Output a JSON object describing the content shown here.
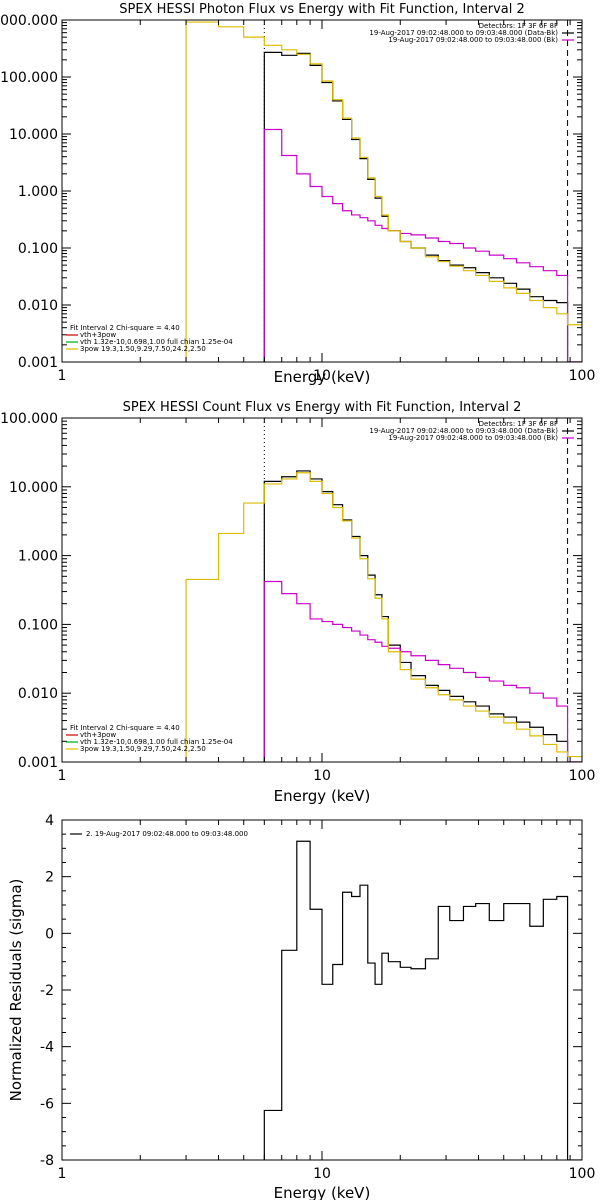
{
  "chart_data": [
    {
      "type": "line",
      "title": "SPEX HESSI Photon Flux vs Energy with Fit Function, Interval 2",
      "xlabel": "Energy (keV)",
      "ylabel": "",
      "xscale": "log",
      "yscale": "log",
      "xlim": [
        1,
        100
      ],
      "ylim": [
        0.001,
        1000
      ],
      "xticks": [
        "1",
        "10",
        "100"
      ],
      "yticks": [
        "0.001",
        "0.010",
        "0.100",
        "1.000",
        "10.000",
        "100.000",
        "1000.000"
      ],
      "detector_header": "Detectors: 1F 3F 6F 8F",
      "legend_top": [
        {
          "text": "19-Aug-2017 09:02:48.000 to 09:03:48.000 (Data-Bk)",
          "color": "#000000"
        },
        {
          "text": "19-Aug-2017 09:02:48.000 to 09:03:48.000 (Bk)",
          "color": "#cc00cc"
        }
      ],
      "legend_bottom": [
        {
          "text": "Fit Interval 2   Chi-square = 4.40",
          "color": null
        },
        {
          "text": "vth+3pow",
          "color": "#cc0000"
        },
        {
          "text": "vth 1.32e-10,0.698,1.00  full chian 1.25e-04",
          "color": "#00aa00"
        },
        {
          "text": "3pow 19.3,1.50,9.29,7.50,24.2,2.50",
          "color": "#ddbb00"
        }
      ],
      "vlines": [
        {
          "x": 6.0,
          "style": "dotted"
        },
        {
          "x": 88.0,
          "style": "dashed"
        }
      ],
      "series": [
        {
          "name": "Data-Bk",
          "color": "#000000",
          "x": [
            6.0,
            7.0,
            8.0,
            9.0,
            10.0,
            11.0,
            12.0,
            13.0,
            14.0,
            15.0,
            16.0,
            17.0,
            18.0,
            20.0,
            22.0,
            25.0,
            28.0,
            31.0,
            35.0,
            39.0,
            44.0,
            50.0,
            56.0,
            63.0,
            71.0,
            80.0,
            88.0
          ],
          "y": [
            270,
            240,
            260,
            160,
            80,
            38,
            18,
            8,
            3.7,
            1.6,
            0.75,
            0.36,
            0.2,
            0.13,
            0.1,
            0.075,
            0.06,
            0.05,
            0.045,
            0.037,
            0.03,
            0.024,
            0.019,
            0.014,
            0.012,
            0.011,
            0.001
          ]
        },
        {
          "name": "Bk",
          "color": "#cc00cc",
          "x": [
            6.0,
            7.0,
            8.0,
            9.0,
            10.0,
            11.0,
            12.0,
            13.0,
            14.0,
            15.0,
            16.0,
            17.0,
            18.0,
            20.0,
            22.0,
            25.0,
            28.0,
            31.0,
            35.0,
            39.0,
            44.0,
            50.0,
            56.0,
            63.0,
            71.0,
            80.0,
            88.0
          ],
          "y": [
            12,
            4.2,
            2.0,
            1.2,
            0.8,
            0.6,
            0.45,
            0.38,
            0.34,
            0.3,
            0.25,
            0.22,
            0.2,
            0.18,
            0.17,
            0.15,
            0.13,
            0.12,
            0.1,
            0.088,
            0.075,
            0.065,
            0.055,
            0.047,
            0.04,
            0.033,
            0.001
          ]
        },
        {
          "name": "vth+3pow",
          "color": "#ddbb00",
          "x": [
            3.0,
            4.0,
            5.0,
            6.0,
            7.0,
            8.0,
            9.0,
            10.0,
            11.0,
            12.0,
            13.0,
            14.0,
            15.0,
            16.0,
            17.0,
            18.0,
            20.0,
            22.0,
            25.0,
            28.0,
            31.0,
            35.0,
            39.0,
            44.0,
            50.0,
            56.0,
            63.0,
            71.0,
            80.0,
            88.0,
            100.0
          ],
          "y": [
            920,
            760,
            500,
            360,
            300,
            250,
            170,
            85,
            40,
            19,
            8.5,
            3.9,
            1.7,
            0.8,
            0.38,
            0.2,
            0.13,
            0.1,
            0.07,
            0.058,
            0.048,
            0.04,
            0.033,
            0.026,
            0.02,
            0.016,
            0.012,
            0.009,
            0.007,
            0.0045,
            0.0045
          ]
        }
      ]
    },
    {
      "type": "line",
      "title": "SPEX HESSI Count Flux vs Energy with Fit Function, Interval 2",
      "xlabel": "Energy (keV)",
      "ylabel": "",
      "xscale": "log",
      "yscale": "log",
      "xlim": [
        1,
        100
      ],
      "ylim": [
        0.001,
        100
      ],
      "xticks": [
        "1",
        "10",
        "100"
      ],
      "yticks": [
        "0.001",
        "0.010",
        "0.100",
        "1.000",
        "10.000",
        "100.000"
      ],
      "detector_header": "Detectors: 1F 3F 6F 8F",
      "legend_top": [
        {
          "text": "19-Aug-2017 09:02:48.000 to 09:03:48.000 (Data-Bk)",
          "color": "#000000"
        },
        {
          "text": "19-Aug-2017 09:02:48.000 to 09:03:48.000 (Bk)",
          "color": "#cc00cc"
        }
      ],
      "legend_bottom": [
        {
          "text": "Fit Interval 2   Chi-square = 4.40",
          "color": null
        },
        {
          "text": "vth+3pow",
          "color": "#cc0000"
        },
        {
          "text": "vth 1.32e-10,0.698,1.00  full chian 1.25e-04",
          "color": "#00aa00"
        },
        {
          "text": "3pow 19.3,1.50,9.29,7.50,24.2,2.50",
          "color": "#ddbb00"
        }
      ],
      "vlines": [
        {
          "x": 6.0,
          "style": "dotted"
        },
        {
          "x": 88.0,
          "style": "dashed"
        }
      ],
      "series": [
        {
          "name": "Data-Bk",
          "color": "#000000",
          "x": [
            6.0,
            7.0,
            8.0,
            9.0,
            10.0,
            11.0,
            12.0,
            13.0,
            14.0,
            15.0,
            16.0,
            17.0,
            18.0,
            20.0,
            22.0,
            25.0,
            28.0,
            31.0,
            35.0,
            39.0,
            44.0,
            50.0,
            56.0,
            63.0,
            71.0,
            80.0,
            88.0
          ],
          "y": [
            12,
            14,
            17,
            13,
            8.5,
            5.5,
            3.3,
            1.9,
            1.0,
            0.52,
            0.27,
            0.13,
            0.05,
            0.028,
            0.018,
            0.013,
            0.011,
            0.009,
            0.0075,
            0.0065,
            0.005,
            0.0045,
            0.0038,
            0.0032,
            0.0025,
            0.002,
            0.001
          ]
        },
        {
          "name": "Bk",
          "color": "#cc00cc",
          "x": [
            6.0,
            7.0,
            8.0,
            9.0,
            10.0,
            11.0,
            12.0,
            13.0,
            14.0,
            15.0,
            16.0,
            17.0,
            18.0,
            20.0,
            22.0,
            25.0,
            28.0,
            31.0,
            35.0,
            39.0,
            44.0,
            50.0,
            56.0,
            63.0,
            71.0,
            80.0,
            88.0
          ],
          "y": [
            0.42,
            0.28,
            0.2,
            0.12,
            0.11,
            0.1,
            0.09,
            0.08,
            0.07,
            0.06,
            0.055,
            0.048,
            0.045,
            0.04,
            0.035,
            0.03,
            0.026,
            0.023,
            0.02,
            0.017,
            0.015,
            0.013,
            0.012,
            0.01,
            0.0085,
            0.0065,
            0.001
          ]
        },
        {
          "name": "vth+3pow",
          "color": "#ddbb00",
          "x": [
            3.0,
            4.0,
            5.0,
            6.0,
            7.0,
            8.0,
            9.0,
            10.0,
            11.0,
            12.0,
            13.0,
            14.0,
            15.0,
            16.0,
            17.0,
            18.0,
            20.0,
            22.0,
            25.0,
            28.0,
            31.0,
            35.0,
            39.0,
            44.0,
            50.0,
            56.0,
            63.0,
            71.0,
            80.0,
            88.0,
            100.0
          ],
          "y": [
            0.45,
            2.1,
            5.8,
            11,
            13,
            16,
            12,
            8,
            5,
            3.2,
            1.8,
            0.9,
            0.46,
            0.24,
            0.12,
            0.04,
            0.022,
            0.016,
            0.012,
            0.0095,
            0.008,
            0.0065,
            0.0055,
            0.0045,
            0.0037,
            0.003,
            0.0024,
            0.0018,
            0.0014,
            0.0012,
            0.001
          ]
        }
      ]
    },
    {
      "type": "line",
      "title": "",
      "xlabel": "Energy (keV)",
      "ylabel": "Normalized Residuals (sigma)",
      "xscale": "log",
      "yscale": "linear",
      "xlim": [
        1,
        100
      ],
      "ylim": [
        -8,
        4
      ],
      "xticks": [
        "1",
        "10",
        "100"
      ],
      "yticks": [
        "-8",
        "-6",
        "-4",
        "-2",
        "0",
        "2",
        "4"
      ],
      "legend": [
        {
          "text": "2. 19-Aug-2017 09:02:48.000 to 09:03:48.000",
          "color": "#000000"
        }
      ],
      "series": [
        {
          "name": "2. 19-Aug-2017 09:02:48.000 to 09:03:48.000",
          "color": "#000000",
          "x": [
            6.0,
            7.0,
            8.0,
            9.0,
            10.0,
            11.0,
            12.0,
            13.0,
            14.0,
            15.0,
            16.0,
            17.0,
            18.0,
            20.0,
            22.0,
            25.0,
            28.0,
            31.0,
            35.0,
            39.0,
            44.0,
            50.0,
            56.0,
            63.0,
            71.0,
            80.0,
            88.0
          ],
          "y": [
            -6.25,
            -0.6,
            3.25,
            0.85,
            -1.8,
            -1.1,
            1.45,
            1.3,
            1.7,
            -1.05,
            -1.8,
            -0.7,
            -1.0,
            -1.2,
            -1.25,
            -0.9,
            0.95,
            0.45,
            0.95,
            1.05,
            0.45,
            1.05,
            1.05,
            0.25,
            1.2,
            1.3,
            -8.0
          ]
        }
      ]
    }
  ]
}
